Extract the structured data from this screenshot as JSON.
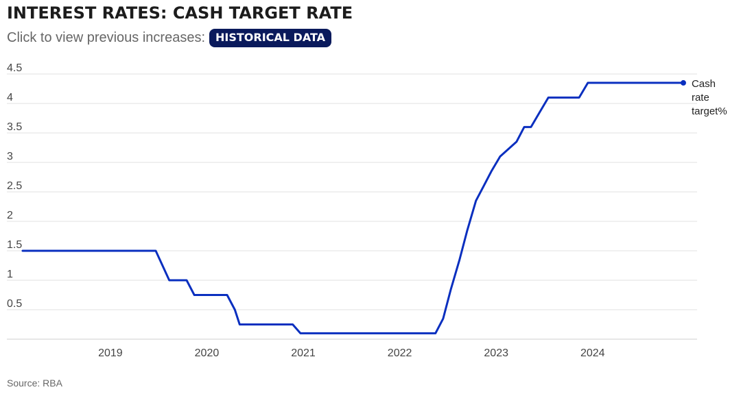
{
  "header": {
    "title": "INTEREST RATES: CASH TARGET RATE",
    "subtitle": "Click to view previous increases:",
    "button_label": "HISTORICAL DATA"
  },
  "source": "Source: RBA",
  "colors": {
    "line": "#0a2fbf",
    "button_bg": "#0a1a5c",
    "grid": "#e2e2e2"
  },
  "chart_data": {
    "type": "line",
    "title": "",
    "xlabel": "",
    "ylabel": "",
    "ylim": [
      0,
      4.5
    ],
    "yticks": [
      0.5,
      1,
      1.5,
      2,
      2.5,
      3,
      3.5,
      4,
      4.5
    ],
    "ytick_labels": [
      "0.5",
      "1",
      "1.5",
      "2",
      "2.5",
      "3",
      "3.5",
      "4",
      "4.5"
    ],
    "xlim": [
      2018.0,
      2024.9
    ],
    "xticks": [
      2019,
      2020,
      2021,
      2022,
      2023,
      2024
    ],
    "xtick_labels": [
      "2019",
      "2020",
      "2021",
      "2022",
      "2023",
      "2024"
    ],
    "grid": true,
    "series": [
      {
        "name": "Cash rate target%",
        "color": "#0a2fbf",
        "points": [
          [
            2018.0,
            1.5
          ],
          [
            2019.38,
            1.5
          ],
          [
            2019.52,
            1.0
          ],
          [
            2019.7,
            1.0
          ],
          [
            2019.78,
            0.75
          ],
          [
            2020.12,
            0.75
          ],
          [
            2020.2,
            0.5
          ],
          [
            2020.25,
            0.25
          ],
          [
            2020.8,
            0.25
          ],
          [
            2020.88,
            0.1
          ],
          [
            2022.28,
            0.1
          ],
          [
            2022.36,
            0.35
          ],
          [
            2022.44,
            0.85
          ],
          [
            2022.53,
            1.35
          ],
          [
            2022.61,
            1.85
          ],
          [
            2022.7,
            2.35
          ],
          [
            2022.78,
            2.6
          ],
          [
            2022.86,
            2.85
          ],
          [
            2022.95,
            3.1
          ],
          [
            2023.12,
            3.35
          ],
          [
            2023.2,
            3.6
          ],
          [
            2023.27,
            3.6
          ],
          [
            2023.36,
            3.85
          ],
          [
            2023.45,
            4.1
          ],
          [
            2023.77,
            4.1
          ],
          [
            2023.86,
            4.35
          ],
          [
            2024.85,
            4.35
          ]
        ],
        "end_label": [
          "Cash",
          "rate",
          "target%"
        ]
      }
    ]
  }
}
